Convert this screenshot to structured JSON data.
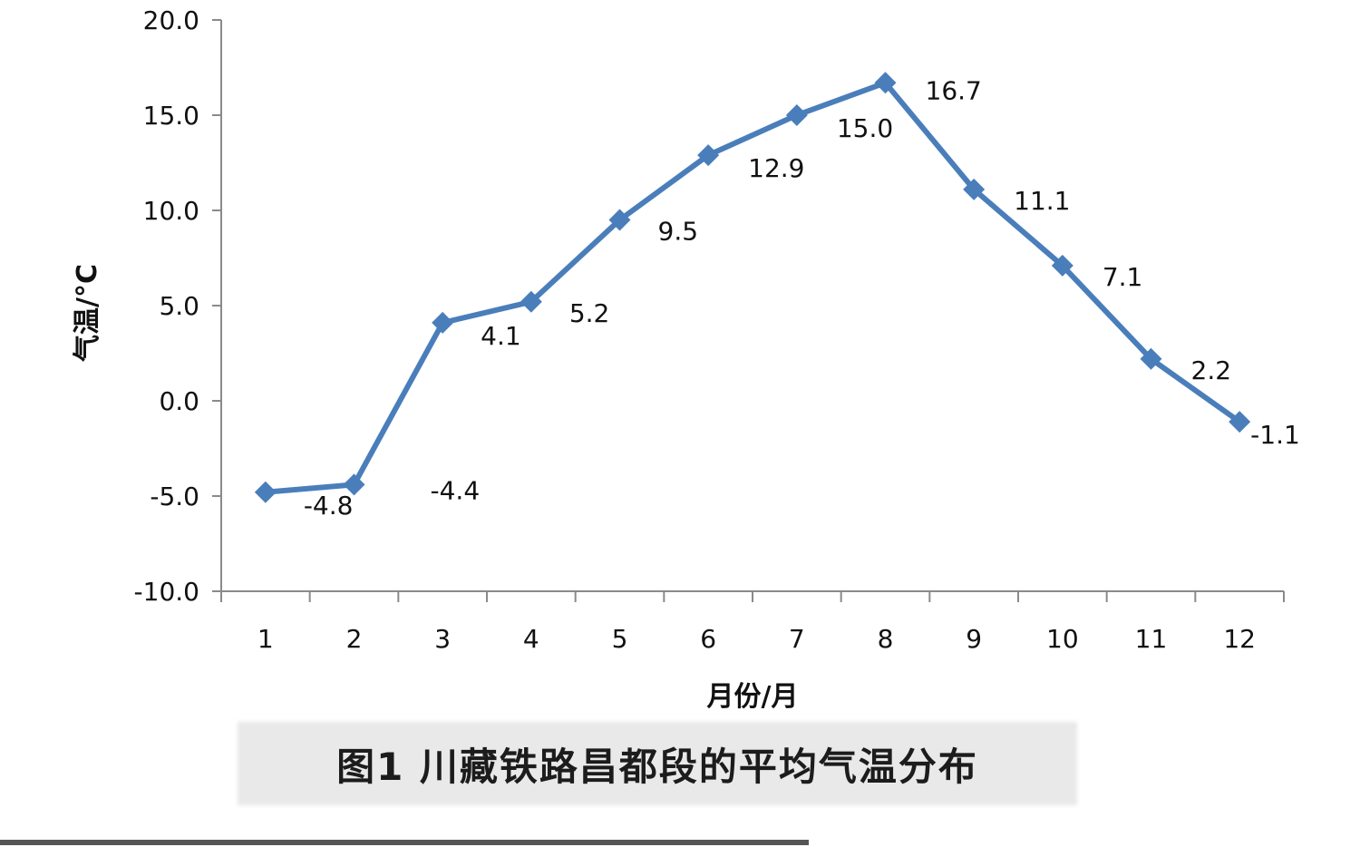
{
  "chart_data": {
    "type": "line",
    "categories": [
      "1",
      "2",
      "3",
      "4",
      "5",
      "6",
      "7",
      "8",
      "9",
      "10",
      "11",
      "12"
    ],
    "series": [
      {
        "values": [
          -4.8,
          -4.4,
          4.1,
          5.2,
          9.5,
          12.9,
          15.0,
          16.7,
          11.1,
          7.1,
          2.2,
          -1.1
        ]
      }
    ],
    "data_labels": [
      "-4.8",
      "-4.4",
      "4.1",
      "5.2",
      "9.5",
      "12.9",
      "15.0",
      "16.7",
      "11.1",
      "7.1",
      "2.2",
      "-1.1"
    ],
    "y_ticks": [
      "20.0",
      "15.0",
      "10.0",
      "5.0",
      "0.0",
      "-5.0",
      "-10.0"
    ],
    "ylim": [
      -10,
      20
    ],
    "xlabel": "月份/月",
    "ylabel": "气温/°C",
    "line_color": "#4a7ebb",
    "marker": "diamond",
    "grid": false
  },
  "caption": "图1  川藏铁路昌都段的平均气温分布"
}
